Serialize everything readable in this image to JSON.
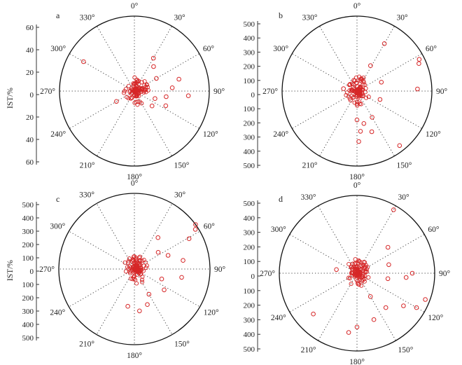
{
  "chart_data": [
    {
      "panel": "a",
      "type": "scatter",
      "coord": "polar",
      "ylabel": "IST/%",
      "r_max": 65,
      "y_ticks": [
        "60",
        "40",
        "20",
        "0",
        "20",
        "40",
        "60"
      ],
      "angle_labels": [
        "0°",
        "30°",
        "60°",
        "90°",
        "120°",
        "150°",
        "180°",
        "210°",
        "240°",
        "270°",
        "300°",
        "330°"
      ],
      "marker_color": "#d62728",
      "points": [
        {
          "angle": 300,
          "r": 51
        },
        {
          "angle": 240,
          "r": 18
        },
        {
          "angle": 38,
          "r": 27
        },
        {
          "angle": 30,
          "r": 33
        },
        {
          "angle": 95,
          "r": 47
        },
        {
          "angle": 75,
          "r": 40
        },
        {
          "angle": 115,
          "r": 30
        },
        {
          "angle": 100,
          "r": 28
        },
        {
          "angle": 130,
          "r": 20
        },
        {
          "angle": 60,
          "r": 22
        },
        {
          "angle": 85,
          "r": 33
        },
        {
          "angle": 110,
          "r": 19
        }
      ]
    },
    {
      "panel": "b",
      "type": "scatter",
      "coord": "polar",
      "ylabel": "",
      "r_max": 520,
      "y_ticks": [
        "500",
        "400",
        "300",
        "200",
        "100",
        "0",
        "100",
        "200",
        "300",
        "400",
        "500"
      ],
      "angle_labels": [
        "0°",
        "30°",
        "60°",
        "90°",
        "120°",
        "150°",
        "180°",
        "210°",
        "240°",
        "270°",
        "300°",
        "330°"
      ],
      "marker_color": "#d62728",
      "points": [
        {
          "angle": 63,
          "r": 485
        },
        {
          "angle": 66,
          "r": 470
        },
        {
          "angle": 88,
          "r": 420
        },
        {
          "angle": 30,
          "r": 380
        },
        {
          "angle": 142,
          "r": 480
        },
        {
          "angle": 160,
          "r": 300
        },
        {
          "angle": 178,
          "r": 350
        },
        {
          "angle": 175,
          "r": 280
        },
        {
          "angle": 168,
          "r": 230
        },
        {
          "angle": 150,
          "r": 210
        },
        {
          "angle": 28,
          "r": 200
        },
        {
          "angle": 70,
          "r": 180
        },
        {
          "angle": 110,
          "r": 170
        },
        {
          "angle": 180,
          "r": 200
        },
        {
          "angle": 280,
          "r": 95
        }
      ]
    },
    {
      "panel": "c",
      "type": "scatter",
      "coord": "polar",
      "ylabel": "IST/%",
      "r_max": 520,
      "y_ticks": [
        "500",
        "400",
        "300",
        "200",
        "100",
        "0",
        "100",
        "200",
        "300",
        "400",
        "500"
      ],
      "angle_labels": [
        "0°",
        "30°",
        "60°",
        "90°",
        "120°",
        "150°",
        "180°",
        "210°",
        "240°",
        "270°",
        "300°",
        "330°"
      ],
      "marker_color": "#d62728",
      "points": [
        {
          "angle": 54,
          "r": 540
        },
        {
          "angle": 57,
          "r": 500
        },
        {
          "angle": 61,
          "r": 430
        },
        {
          "angle": 37,
          "r": 270
        },
        {
          "angle": 80,
          "r": 340
        },
        {
          "angle": 100,
          "r": 330
        },
        {
          "angle": 68,
          "r": 250
        },
        {
          "angle": 125,
          "r": 250
        },
        {
          "angle": 150,
          "r": 200
        },
        {
          "angle": 160,
          "r": 260
        },
        {
          "angle": 173,
          "r": 290
        },
        {
          "angle": 190,
          "r": 260
        },
        {
          "angle": 55,
          "r": 200
        },
        {
          "angle": 110,
          "r": 200
        }
      ]
    },
    {
      "panel": "d",
      "type": "scatter",
      "coord": "polar",
      "ylabel": "",
      "r_max": 520,
      "y_ticks": [
        "500",
        "400",
        "300",
        "200",
        "100",
        "0",
        "100",
        "200",
        "300",
        "400",
        "500"
      ],
      "angle_labels": [
        "0°",
        "30°",
        "60°",
        "90°",
        "120°",
        "150°",
        "180°",
        "210°",
        "240°",
        "270°",
        "300°",
        "330°"
      ],
      "marker_color": "#d62728",
      "points": [
        {
          "angle": 30,
          "r": 490
        },
        {
          "angle": 111,
          "r": 490
        },
        {
          "angle": 120,
          "r": 460
        },
        {
          "angle": 125,
          "r": 380
        },
        {
          "angle": 90,
          "r": 370
        },
        {
          "angle": 95,
          "r": 330
        },
        {
          "angle": 140,
          "r": 300
        },
        {
          "angle": 160,
          "r": 330
        },
        {
          "angle": 180,
          "r": 360
        },
        {
          "angle": 188,
          "r": 400
        },
        {
          "angle": 227,
          "r": 400
        },
        {
          "angle": 50,
          "r": 270
        },
        {
          "angle": 280,
          "r": 140
        },
        {
          "angle": 75,
          "r": 220
        },
        {
          "angle": 100,
          "r": 210
        },
        {
          "angle": 150,
          "r": 180
        }
      ]
    }
  ]
}
